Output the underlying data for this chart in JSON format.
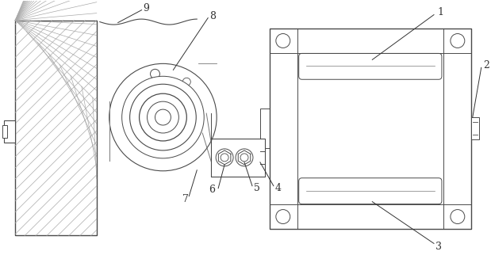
{
  "bg_color": "#ffffff",
  "line_color": "#4a4a4a",
  "label_color": "#333333",
  "fig_width": 6.19,
  "fig_height": 3.27,
  "dpi": 100
}
